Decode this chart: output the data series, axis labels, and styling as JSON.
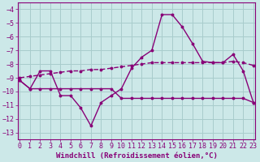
{
  "background_color": "#cce8e8",
  "grid_color": "#a8cccc",
  "line_color": "#880077",
  "xlim": [
    -0.2,
    23.2
  ],
  "ylim": [
    -13.5,
    -3.5
  ],
  "yticks": [
    -13,
    -12,
    -11,
    -10,
    -9,
    -8,
    -7,
    -6,
    -5,
    -4
  ],
  "xticks": [
    0,
    1,
    2,
    3,
    4,
    5,
    6,
    7,
    8,
    9,
    10,
    11,
    12,
    13,
    14,
    15,
    16,
    17,
    18,
    19,
    20,
    21,
    22,
    23
  ],
  "xlabel": "Windchill (Refroidissement éolien,°C)",
  "xlabel_fontsize": 6.5,
  "tick_fontsize": 6.0,
  "curve_x": [
    0,
    1,
    2,
    3,
    4,
    5,
    6,
    7,
    8,
    9,
    10,
    11,
    12,
    13,
    14,
    15,
    16,
    17,
    18,
    19,
    20,
    21,
    22,
    23
  ],
  "curve_y": [
    -9.2,
    -9.8,
    -8.5,
    -8.5,
    -10.3,
    -10.3,
    -11.2,
    -12.5,
    -10.8,
    -10.3,
    -9.8,
    -8.3,
    -7.5,
    -7.0,
    -4.4,
    -4.4,
    -5.3,
    -6.5,
    -7.8,
    -7.9,
    -7.9,
    -7.3,
    -8.5,
    -10.8
  ],
  "flat_x": [
    0,
    1,
    2,
    3,
    4,
    5,
    6,
    7,
    8,
    9,
    10,
    11,
    12,
    13,
    14,
    15,
    16,
    17,
    18,
    19,
    20,
    21,
    22,
    23
  ],
  "flat_y": [
    -9.2,
    -9.8,
    -9.8,
    -9.8,
    -9.8,
    -9.8,
    -9.8,
    -9.8,
    -9.8,
    -9.8,
    -10.5,
    -10.5,
    -10.5,
    -10.5,
    -10.5,
    -10.5,
    -10.5,
    -10.5,
    -10.5,
    -10.5,
    -10.5,
    -10.5,
    -10.5,
    -10.8
  ],
  "mid_x": [
    0,
    1,
    2,
    3,
    4,
    5,
    6,
    7,
    8,
    9,
    10,
    11,
    12,
    13,
    14,
    15,
    16,
    17,
    18,
    19,
    20,
    21,
    22,
    23
  ],
  "mid_y": [
    -9.0,
    -8.9,
    -8.8,
    -8.7,
    -8.6,
    -8.5,
    -8.5,
    -8.4,
    -8.4,
    -8.3,
    -8.2,
    -8.1,
    -8.0,
    -7.9,
    -7.9,
    -7.9,
    -7.9,
    -7.9,
    -7.9,
    -7.9,
    -7.9,
    -7.8,
    -7.9,
    -8.1
  ]
}
